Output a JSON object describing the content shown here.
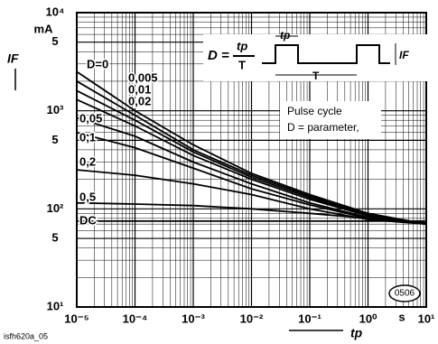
{
  "chart_data": {
    "type": "line",
    "log_x": true,
    "log_y": true,
    "grid": true,
    "color": "#000000",
    "y_label": "IF",
    "y_unit": "mA",
    "x_label": "tp",
    "x_unit": "s",
    "annotation": [
      "Pulse cycle",
      "D = parameter,"
    ],
    "formula": {
      "lhs": "D =",
      "num": "tp",
      "den": "T"
    },
    "diagram_labels": {
      "tp": "tp",
      "T": "T",
      "IF": "IF"
    },
    "badge": "0506",
    "footer": "isfh620a_05",
    "xlim": [
      1e-05,
      10
    ],
    "ylim": [
      10,
      10000
    ],
    "xticks": [
      {
        "value": 1e-05,
        "label": "10⁻⁵"
      },
      {
        "value": 0.0001,
        "label": "10⁻⁴"
      },
      {
        "value": 0.001,
        "label": "10⁻³"
      },
      {
        "value": 0.01,
        "label": "10⁻²"
      },
      {
        "value": 0.1,
        "label": "10⁻¹"
      },
      {
        "value": 1,
        "label": "10⁰"
      },
      {
        "value": 10,
        "label": "10¹"
      }
    ],
    "yticks": [
      {
        "value": 10,
        "label": "10¹"
      },
      {
        "value": 50,
        "label": "5"
      },
      {
        "value": 100,
        "label": "10²"
      },
      {
        "value": 500,
        "label": "5"
      },
      {
        "value": 1000,
        "label": "10³"
      },
      {
        "value": 5000,
        "label": "5"
      },
      {
        "value": 10000,
        "label": "10⁴"
      }
    ],
    "x": [
      1e-05,
      0.0001,
      0.001,
      0.01,
      0.1,
      1,
      10
    ],
    "series": [
      {
        "name": "D=0",
        "values": [
          2500,
          1000,
          450,
          230,
          140,
          90,
          70
        ]
      },
      {
        "name": "0,005",
        "values": [
          2000,
          900,
          400,
          220,
          135,
          88,
          70
        ]
      },
      {
        "name": "0,01",
        "values": [
          1600,
          800,
          380,
          210,
          130,
          86,
          70
        ]
      },
      {
        "name": "0,02",
        "values": [
          1300,
          700,
          350,
          200,
          125,
          85,
          70
        ]
      },
      {
        "name": "0,05",
        "values": [
          850,
          550,
          300,
          180,
          115,
          82,
          70
        ]
      },
      {
        "name": "0,1",
        "values": [
          600,
          420,
          260,
          160,
          110,
          80,
          70
        ]
      },
      {
        "name": "0,2",
        "values": [
          250,
          220,
          180,
          140,
          100,
          78,
          70
        ]
      },
      {
        "name": "0,5",
        "values": [
          115,
          112,
          108,
          100,
          90,
          80,
          72
        ]
      },
      {
        "name": "DC",
        "values": [
          75,
          75,
          75,
          75,
          75,
          75,
          75
        ]
      }
    ]
  }
}
